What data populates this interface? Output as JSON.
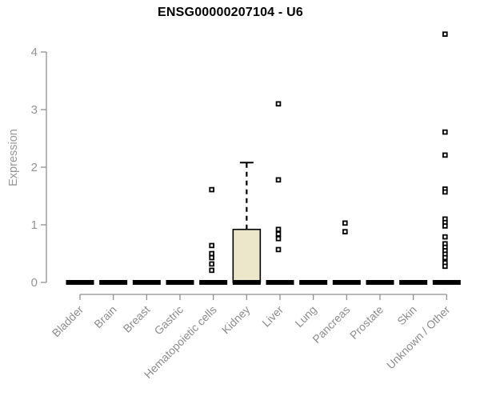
{
  "header": {
    "title": "ENSG00000207104 - U6"
  },
  "chart_data": {
    "type": "boxplot",
    "title": "ENSG00000207104 - U6",
    "xlabel": "",
    "ylabel": "Expression",
    "ylim": [
      0,
      4.4
    ],
    "yticks": [
      0,
      1,
      2,
      3,
      4
    ],
    "grid": false,
    "legend": false,
    "categories": [
      "Bladder",
      "Brain",
      "Breast",
      "Gastric",
      "Hematopoietic cells",
      "Kidney",
      "Liver",
      "Lung",
      "Pancreas",
      "Prostate",
      "Skin",
      "Unknown / Other"
    ],
    "series": [
      {
        "category": "Bladder",
        "q1": 0,
        "median": 0,
        "q3": 0,
        "whisker_low": 0,
        "whisker_high": 0,
        "outliers": []
      },
      {
        "category": "Brain",
        "q1": 0,
        "median": 0,
        "q3": 0,
        "whisker_low": 0,
        "whisker_high": 0,
        "outliers": []
      },
      {
        "category": "Breast",
        "q1": 0,
        "median": 0,
        "q3": 0,
        "whisker_low": 0,
        "whisker_high": 0,
        "outliers": []
      },
      {
        "category": "Gastric",
        "q1": 0,
        "median": 0,
        "q3": 0,
        "whisker_low": 0,
        "whisker_high": 0,
        "outliers": []
      },
      {
        "category": "Hematopoietic cells",
        "q1": 0,
        "median": 0,
        "q3": 0,
        "whisker_low": 0,
        "whisker_high": 0,
        "outliers": [
          1.61,
          0.64,
          0.5,
          0.43,
          0.32,
          0.21
        ]
      },
      {
        "category": "Kidney",
        "q1": 0,
        "median": 0,
        "q3": 0.92,
        "whisker_low": 0,
        "whisker_high": 2.08,
        "outliers": []
      },
      {
        "category": "Liver",
        "q1": 0,
        "median": 0,
        "q3": 0,
        "whisker_low": 0,
        "whisker_high": 0,
        "outliers": [
          3.1,
          1.78,
          0.92,
          0.84,
          0.76,
          0.57
        ]
      },
      {
        "category": "Lung",
        "q1": 0,
        "median": 0,
        "q3": 0,
        "whisker_low": 0,
        "whisker_high": 0,
        "outliers": []
      },
      {
        "category": "Pancreas",
        "q1": 0,
        "median": 0,
        "q3": 0,
        "whisker_low": 0,
        "whisker_high": 0,
        "outliers": [
          1.03,
          0.88
        ]
      },
      {
        "category": "Prostate",
        "q1": 0,
        "median": 0,
        "q3": 0,
        "whisker_low": 0,
        "whisker_high": 0,
        "outliers": []
      },
      {
        "category": "Skin",
        "q1": 0,
        "median": 0,
        "q3": 0,
        "whisker_low": 0,
        "whisker_high": 0,
        "outliers": []
      },
      {
        "category": "Unknown / Other",
        "q1": 0,
        "median": 0,
        "q3": 0,
        "whisker_low": 0,
        "whisker_high": 0,
        "outliers": [
          4.31,
          2.61,
          2.21,
          1.62,
          1.57,
          1.1,
          1.04,
          0.98,
          0.79,
          0.67,
          0.61,
          0.55,
          0.49,
          0.43,
          0.34,
          0.28
        ]
      }
    ],
    "colors": {
      "background": "#ffffff",
      "axis": "#909090",
      "tick_label": "#939393",
      "category_label": "#8c8c8c",
      "box_fill": "#ece6cb",
      "box_stroke": "#000000",
      "median": "#000000",
      "outlier_stroke": "#000000",
      "outlier_fill": "#ffffff",
      "title": "#000000"
    }
  }
}
